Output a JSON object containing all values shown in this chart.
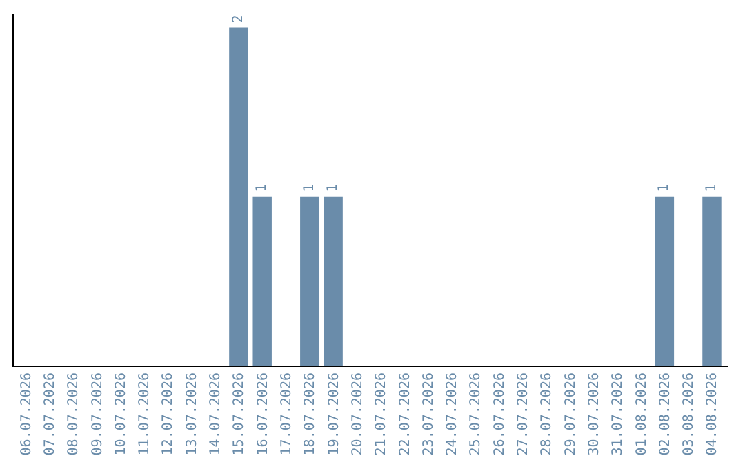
{
  "chart_data": {
    "type": "bar",
    "categories": [
      "06.07.2026",
      "07.07.2026",
      "08.07.2026",
      "09.07.2026",
      "10.07.2026",
      "11.07.2026",
      "12.07.2026",
      "13.07.2026",
      "14.07.2026",
      "15.07.2026",
      "16.07.2026",
      "17.07.2026",
      "18.07.2026",
      "19.07.2026",
      "20.07.2026",
      "21.07.2026",
      "22.07.2026",
      "23.07.2026",
      "24.07.2026",
      "25.07.2026",
      "26.07.2026",
      "27.07.2026",
      "28.07.2026",
      "29.07.2026",
      "30.07.2026",
      "31.07.2026",
      "01.08.2026",
      "02.08.2026",
      "03.08.2026",
      "04.08.2026"
    ],
    "values": [
      0,
      0,
      0,
      0,
      0,
      0,
      0,
      0,
      0,
      2,
      1,
      0,
      1,
      1,
      0,
      0,
      0,
      0,
      0,
      0,
      0,
      0,
      0,
      0,
      0,
      0,
      0,
      1,
      0,
      1
    ],
    "value_labels": [
      null,
      null,
      null,
      null,
      null,
      null,
      null,
      null,
      null,
      "2",
      "1",
      null,
      "1",
      "1",
      null,
      null,
      null,
      null,
      null,
      null,
      null,
      null,
      null,
      null,
      null,
      null,
      null,
      "1",
      null,
      "1"
    ],
    "color": "#6a8caa"
  }
}
